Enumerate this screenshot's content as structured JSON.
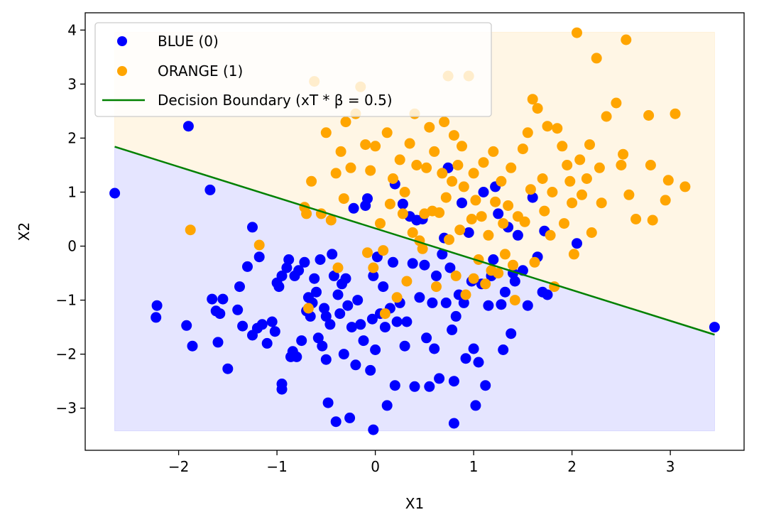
{
  "chart_data": {
    "type": "scatter",
    "title": "",
    "xlabel": "X1",
    "ylabel": "X2",
    "xlim": [
      -2.95,
      3.75
    ],
    "ylim": [
      -3.78,
      4.32
    ],
    "xticks": [
      -2,
      -1,
      0,
      1,
      2,
      3
    ],
    "yticks": [
      -3,
      -2,
      -1,
      0,
      1,
      2,
      3,
      4
    ],
    "xtick_labels": [
      "−2",
      "−1",
      "0",
      "1",
      "2",
      "3"
    ],
    "ytick_labels": [
      "−3",
      "−2",
      "−1",
      "0",
      "1",
      "2",
      "3",
      "4"
    ],
    "grid": false,
    "legend_position": "top-left",
    "regions": [
      {
        "name": "class-1-region",
        "color": "#FFA500",
        "opacity": 0.1
      },
      {
        "name": "class-0-region",
        "color": "#0000FF",
        "opacity": 0.1
      }
    ],
    "region_extent": {
      "x": [
        -2.65,
        3.45
      ],
      "y": [
        -3.42,
        3.96
      ]
    },
    "boundary": {
      "name": "Decision Boundary (xT * β = 0.5)",
      "color": "#008000",
      "x": [
        -2.65,
        3.45
      ],
      "y": [
        1.84,
        -1.64
      ]
    },
    "series": [
      {
        "name": "BLUE (0)",
        "color": "#0000FF",
        "points": [
          [
            -2.65,
            0.98
          ],
          [
            -1.9,
            2.22
          ],
          [
            -1.68,
            1.04
          ],
          [
            -2.22,
            -1.1
          ],
          [
            -2.23,
            -1.32
          ],
          [
            -1.92,
            -1.47
          ],
          [
            -1.86,
            -1.85
          ],
          [
            -1.66,
            -0.98
          ],
          [
            -1.62,
            -1.2
          ],
          [
            -1.58,
            -1.25
          ],
          [
            -1.55,
            -0.98
          ],
          [
            -1.5,
            -2.27
          ],
          [
            -1.6,
            -1.78
          ],
          [
            -1.4,
            -1.18
          ],
          [
            -1.38,
            -0.75
          ],
          [
            -1.35,
            -1.48
          ],
          [
            -1.3,
            -0.38
          ],
          [
            -1.25,
            0.35
          ],
          [
            -1.25,
            -1.65
          ],
          [
            -1.2,
            -1.52
          ],
          [
            -1.18,
            -0.2
          ],
          [
            -1.15,
            -1.45
          ],
          [
            -1.1,
            -1.8
          ],
          [
            -1.05,
            -1.4
          ],
          [
            -1.02,
            -1.58
          ],
          [
            -1.0,
            -0.68
          ],
          [
            -0.98,
            -0.75
          ],
          [
            -0.95,
            -0.55
          ],
          [
            -0.95,
            -2.55
          ],
          [
            -0.95,
            -2.65
          ],
          [
            -0.9,
            -0.4
          ],
          [
            -0.88,
            -0.25
          ],
          [
            -0.86,
            -2.05
          ],
          [
            -0.84,
            -1.95
          ],
          [
            -0.82,
            -0.55
          ],
          [
            -0.8,
            -2.05
          ],
          [
            -0.78,
            -0.45
          ],
          [
            -0.75,
            -1.75
          ],
          [
            -0.72,
            -0.3
          ],
          [
            -0.7,
            -1.2
          ],
          [
            -0.68,
            -0.95
          ],
          [
            -0.66,
            -1.3
          ],
          [
            -0.64,
            -1.05
          ],
          [
            -0.62,
            -0.6
          ],
          [
            -0.6,
            -0.85
          ],
          [
            -0.58,
            -1.7
          ],
          [
            -0.56,
            -0.25
          ],
          [
            -0.54,
            -1.85
          ],
          [
            -0.52,
            -1.15
          ],
          [
            -0.5,
            -1.3
          ],
          [
            -0.5,
            -2.1
          ],
          [
            -0.48,
            -2.9
          ],
          [
            -0.46,
            -1.45
          ],
          [
            -0.44,
            -0.15
          ],
          [
            -0.42,
            -0.55
          ],
          [
            -0.4,
            -3.25
          ],
          [
            -0.38,
            -0.9
          ],
          [
            -0.36,
            -1.25
          ],
          [
            -0.34,
            -0.7
          ],
          [
            -0.32,
            -2.0
          ],
          [
            -0.3,
            -0.6
          ],
          [
            -0.28,
            -1.1
          ],
          [
            -0.26,
            -3.18
          ],
          [
            -0.24,
            -1.5
          ],
          [
            -0.22,
            0.7
          ],
          [
            -0.2,
            -2.2
          ],
          [
            -0.18,
            -1.0
          ],
          [
            -0.15,
            -1.45
          ],
          [
            -0.12,
            -1.75
          ],
          [
            -0.1,
            0.75
          ],
          [
            -0.08,
            0.88
          ],
          [
            -0.05,
            -2.3
          ],
          [
            -0.03,
            -1.35
          ],
          [
            -0.02,
            -0.55
          ],
          [
            -0.02,
            -3.4
          ],
          [
            0.0,
            -1.92
          ],
          [
            0.02,
            -0.2
          ],
          [
            0.05,
            -1.25
          ],
          [
            0.08,
            -0.75
          ],
          [
            0.1,
            -1.5
          ],
          [
            0.12,
            -2.95
          ],
          [
            0.15,
            -1.15
          ],
          [
            0.18,
            -0.3
          ],
          [
            0.2,
            -2.58
          ],
          [
            0.2,
            1.15
          ],
          [
            0.22,
            -1.4
          ],
          [
            0.25,
            -1.05
          ],
          [
            0.28,
            0.78
          ],
          [
            0.3,
            -1.85
          ],
          [
            0.32,
            -1.4
          ],
          [
            0.35,
            0.55
          ],
          [
            0.38,
            -0.32
          ],
          [
            0.4,
            -2.6
          ],
          [
            0.42,
            0.48
          ],
          [
            0.45,
            -0.95
          ],
          [
            0.48,
            0.5
          ],
          [
            0.5,
            -0.35
          ],
          [
            0.52,
            -1.7
          ],
          [
            0.55,
            -2.6
          ],
          [
            0.58,
            -1.05
          ],
          [
            0.6,
            -1.9
          ],
          [
            0.62,
            -0.55
          ],
          [
            0.65,
            -2.45
          ],
          [
            0.68,
            -0.15
          ],
          [
            0.7,
            0.15
          ],
          [
            0.72,
            -1.05
          ],
          [
            0.74,
            1.45
          ],
          [
            0.76,
            -0.4
          ],
          [
            0.78,
            -1.55
          ],
          [
            0.8,
            -2.5
          ],
          [
            0.8,
            -3.28
          ],
          [
            0.82,
            -1.3
          ],
          [
            0.85,
            -0.9
          ],
          [
            0.88,
            0.8
          ],
          [
            0.9,
            -1.05
          ],
          [
            0.92,
            -2.08
          ],
          [
            0.95,
            0.25
          ],
          [
            0.98,
            -0.65
          ],
          [
            1.0,
            -1.9
          ],
          [
            1.02,
            -2.95
          ],
          [
            1.05,
            -2.15
          ],
          [
            1.08,
            -0.7
          ],
          [
            1.1,
            1.0
          ],
          [
            1.12,
            -2.58
          ],
          [
            1.15,
            -1.1
          ],
          [
            1.18,
            -0.55
          ],
          [
            1.2,
            -0.25
          ],
          [
            1.22,
            1.1
          ],
          [
            1.25,
            0.6
          ],
          [
            1.28,
            -1.08
          ],
          [
            1.3,
            -1.92
          ],
          [
            1.32,
            -0.85
          ],
          [
            1.35,
            0.35
          ],
          [
            1.38,
            -1.62
          ],
          [
            1.4,
            -0.5
          ],
          [
            1.42,
            -0.65
          ],
          [
            1.45,
            0.2
          ],
          [
            1.5,
            -0.45
          ],
          [
            1.55,
            -1.1
          ],
          [
            1.6,
            0.9
          ],
          [
            1.65,
            -0.2
          ],
          [
            1.7,
            -0.85
          ],
          [
            1.72,
            0.28
          ],
          [
            1.75,
            -0.9
          ],
          [
            2.05,
            0.05
          ],
          [
            3.45,
            -1.5
          ]
        ]
      },
      {
        "name": "ORANGE (1)",
        "color": "#FFA500",
        "points": [
          [
            -1.88,
            0.3
          ],
          [
            -1.18,
            0.02
          ],
          [
            -0.72,
            0.72
          ],
          [
            -0.7,
            0.6
          ],
          [
            -0.68,
            -1.15
          ],
          [
            -0.65,
            1.2
          ],
          [
            -0.62,
            3.05
          ],
          [
            -0.55,
            0.6
          ],
          [
            -0.5,
            2.1
          ],
          [
            -0.45,
            0.48
          ],
          [
            -0.4,
            1.35
          ],
          [
            -0.38,
            -0.4
          ],
          [
            -0.35,
            1.75
          ],
          [
            -0.32,
            0.88
          ],
          [
            -0.3,
            2.3
          ],
          [
            -0.25,
            1.45
          ],
          [
            -0.2,
            2.45
          ],
          [
            -0.15,
            2.95
          ],
          [
            -0.1,
            1.88
          ],
          [
            -0.08,
            -0.12
          ],
          [
            -0.05,
            1.4
          ],
          [
            -0.02,
            -0.4
          ],
          [
            0.0,
            1.85
          ],
          [
            0.05,
            0.42
          ],
          [
            0.08,
            -0.08
          ],
          [
            0.1,
            -1.25
          ],
          [
            0.12,
            2.1
          ],
          [
            0.15,
            0.78
          ],
          [
            0.18,
            1.25
          ],
          [
            0.22,
            -0.95
          ],
          [
            0.25,
            1.6
          ],
          [
            0.28,
            0.6
          ],
          [
            0.3,
            1.0
          ],
          [
            0.32,
            -0.65
          ],
          [
            0.35,
            1.9
          ],
          [
            0.38,
            0.25
          ],
          [
            0.4,
            2.45
          ],
          [
            0.42,
            1.5
          ],
          [
            0.45,
            0.1
          ],
          [
            0.48,
            -0.05
          ],
          [
            0.5,
            0.6
          ],
          [
            0.52,
            1.45
          ],
          [
            0.55,
            2.2
          ],
          [
            0.58,
            0.65
          ],
          [
            0.6,
            1.75
          ],
          [
            0.62,
            -0.75
          ],
          [
            0.65,
            0.62
          ],
          [
            0.68,
            1.35
          ],
          [
            0.7,
            2.3
          ],
          [
            0.72,
            0.9
          ],
          [
            0.74,
            3.15
          ],
          [
            0.75,
            0.12
          ],
          [
            0.78,
            1.2
          ],
          [
            0.8,
            2.05
          ],
          [
            0.82,
            -0.55
          ],
          [
            0.84,
            1.5
          ],
          [
            0.86,
            0.3
          ],
          [
            0.88,
            1.85
          ],
          [
            0.9,
            1.1
          ],
          [
            0.92,
            -0.9
          ],
          [
            0.95,
            3.15
          ],
          [
            0.98,
            0.5
          ],
          [
            1.0,
            1.35
          ],
          [
            1.0,
            -0.6
          ],
          [
            1.02,
            0.85
          ],
          [
            1.05,
            -0.25
          ],
          [
            1.08,
            0.55
          ],
          [
            1.1,
            1.55
          ],
          [
            1.12,
            -0.7
          ],
          [
            1.15,
            0.2
          ],
          [
            1.18,
            -0.45
          ],
          [
            1.2,
            1.75
          ],
          [
            1.22,
            0.82
          ],
          [
            1.25,
            -0.5
          ],
          [
            1.28,
            1.2
          ],
          [
            1.3,
            0.42
          ],
          [
            1.32,
            -0.15
          ],
          [
            1.35,
            0.75
          ],
          [
            1.38,
            1.45
          ],
          [
            1.4,
            -0.35
          ],
          [
            1.42,
            -1.0
          ],
          [
            1.45,
            0.55
          ],
          [
            1.5,
            1.8
          ],
          [
            1.52,
            0.45
          ],
          [
            1.55,
            2.1
          ],
          [
            1.58,
            1.05
          ],
          [
            1.6,
            2.72
          ],
          [
            1.62,
            -0.3
          ],
          [
            1.65,
            2.55
          ],
          [
            1.7,
            1.25
          ],
          [
            1.72,
            0.65
          ],
          [
            1.75,
            2.22
          ],
          [
            1.78,
            0.2
          ],
          [
            1.8,
            1.0
          ],
          [
            1.82,
            -0.75
          ],
          [
            1.85,
            2.18
          ],
          [
            1.9,
            1.85
          ],
          [
            1.92,
            0.42
          ],
          [
            1.95,
            1.5
          ],
          [
            1.98,
            1.2
          ],
          [
            2.0,
            0.8
          ],
          [
            2.02,
            -0.15
          ],
          [
            2.05,
            3.95
          ],
          [
            2.08,
            1.6
          ],
          [
            2.1,
            0.95
          ],
          [
            2.15,
            1.25
          ],
          [
            2.18,
            1.88
          ],
          [
            2.2,
            0.25
          ],
          [
            2.25,
            3.48
          ],
          [
            2.28,
            1.45
          ],
          [
            2.3,
            0.8
          ],
          [
            2.35,
            2.4
          ],
          [
            2.45,
            2.65
          ],
          [
            2.5,
            1.5
          ],
          [
            2.52,
            1.7
          ],
          [
            2.55,
            3.82
          ],
          [
            2.58,
            0.95
          ],
          [
            2.65,
            0.5
          ],
          [
            2.78,
            2.42
          ],
          [
            2.8,
            1.5
          ],
          [
            2.82,
            0.48
          ],
          [
            2.95,
            0.85
          ],
          [
            2.98,
            1.22
          ],
          [
            3.05,
            2.45
          ],
          [
            3.15,
            1.1
          ]
        ]
      }
    ]
  }
}
